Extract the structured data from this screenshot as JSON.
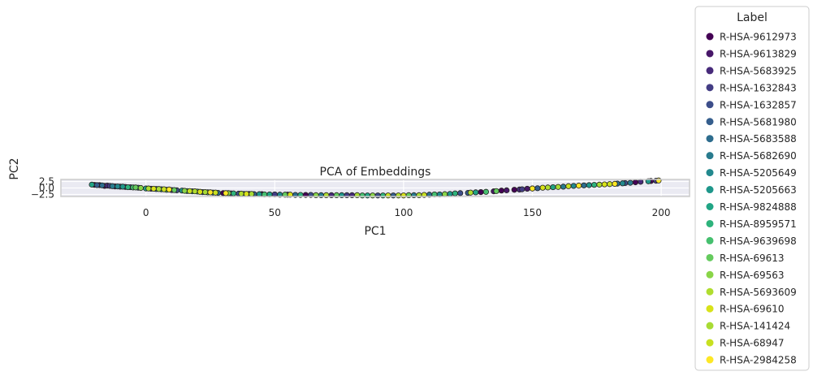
{
  "chart_data": {
    "type": "scatter",
    "title": "PCA of Embeddings",
    "xlabel": "PC1",
    "ylabel": "PC2",
    "xlim": [
      -33,
      211
    ],
    "ylim": [
      -3.3,
      3.3
    ],
    "xticks": [
      0,
      50,
      100,
      150,
      200
    ],
    "xtick_labels": [
      "0",
      "50",
      "100",
      "150",
      "200"
    ],
    "yticks": [
      2.5,
      0.0,
      -2.5
    ],
    "ytick_labels": [
      "2.5",
      "0.0",
      "−2.5"
    ],
    "grid": true,
    "legend": {
      "title": "Label",
      "placement": "outside-right",
      "entries": [
        {
          "label": "R-HSA-9612973",
          "color": "#440154"
        },
        {
          "label": "R-HSA-9613829",
          "color": "#481769"
        },
        {
          "label": "R-HSA-5683925",
          "color": "#472a7a"
        },
        {
          "label": "R-HSA-1632843",
          "color": "#433d84"
        },
        {
          "label": "R-HSA-1632857",
          "color": "#3d4e8a"
        },
        {
          "label": "R-HSA-5681980",
          "color": "#355e8d"
        },
        {
          "label": "R-HSA-5683588",
          "color": "#2e6d8e"
        },
        {
          "label": "R-HSA-5682690",
          "color": "#297b8e"
        },
        {
          "label": "R-HSA-5205649",
          "color": "#23898e"
        },
        {
          "label": "R-HSA-5205663",
          "color": "#1f978b"
        },
        {
          "label": "R-HSA-9824888",
          "color": "#21a585"
        },
        {
          "label": "R-HSA-8959571",
          "color": "#2eb37c"
        },
        {
          "label": "R-HSA-9639698",
          "color": "#46c06f"
        },
        {
          "label": "R-HSA-69613",
          "color": "#65cb5e"
        },
        {
          "label": "R-HSA-69563",
          "color": "#89d548"
        },
        {
          "label": "R-HSA-5693609",
          "color": "#b0dd2f"
        },
        {
          "label": "R-HSA-69610",
          "color": "#d8e219"
        },
        {
          "label": "R-HSA-141424",
          "color": "#a8db34"
        },
        {
          "label": "R-HSA-68947",
          "color": "#c8e020"
        },
        {
          "label": "R-HSA-2984258",
          "color": "#fde725"
        }
      ]
    },
    "series": [
      {
        "label_index": 0,
        "x": [
          -20,
          -16,
          30,
          45,
          62,
          130,
          138,
          143,
          190,
          196
        ],
        "y": [
          1.2,
          0.8,
          -2.0,
          -2.4,
          -2.7,
          -1.6,
          -1.0,
          -0.7,
          2.2,
          2.7
        ]
      },
      {
        "label_index": 1,
        "x": [
          -18,
          -12,
          40,
          55,
          135,
          140,
          148
        ],
        "y": [
          1.1,
          0.6,
          -2.3,
          -2.6,
          -1.3,
          -0.9,
          -0.3
        ]
      },
      {
        "label_index": 2,
        "x": [
          -15,
          -8,
          2,
          72,
          80,
          145,
          192
        ],
        "y": [
          0.9,
          0.4,
          -0.3,
          -2.8,
          -2.8,
          -0.6,
          2.4
        ]
      },
      {
        "label_index": 3,
        "x": [
          -14,
          10,
          33,
          50,
          78,
          146,
          198
        ],
        "y": [
          0.8,
          -0.8,
          -2.1,
          -2.5,
          -2.8,
          -0.5,
          2.8
        ]
      },
      {
        "label_index": 4,
        "x": [
          -10,
          12,
          36,
          64,
          90,
          122,
          186
        ],
        "y": [
          0.5,
          -0.9,
          -2.2,
          -2.7,
          -2.9,
          -2.0,
          1.9
        ]
      },
      {
        "label_index": 5,
        "x": [
          -19,
          -6,
          22,
          42,
          96,
          125,
          152
        ],
        "y": [
          1.1,
          0.3,
          -1.6,
          -2.4,
          -2.9,
          -1.9,
          -0.1
        ]
      },
      {
        "label_index": 6,
        "x": [
          -17,
          -3,
          28,
          58,
          110,
          170,
          183
        ],
        "y": [
          1.0,
          0.1,
          -1.9,
          -2.7,
          -2.6,
          1.0,
          1.7
        ]
      },
      {
        "label_index": 7,
        "x": [
          -13,
          4,
          38,
          68,
          104,
          162,
          188
        ],
        "y": [
          0.7,
          -0.4,
          -2.3,
          -2.8,
          -2.8,
          0.5,
          2.0
        ]
      },
      {
        "label_index": 8,
        "x": [
          -11,
          6,
          26,
          52,
          114,
          166,
          185
        ],
        "y": [
          0.6,
          -0.5,
          -1.8,
          -2.6,
          -2.5,
          0.8,
          1.8
        ]
      },
      {
        "label_index": 9,
        "x": [
          -9,
          14,
          44,
          76,
          118,
          172,
          195
        ],
        "y": [
          0.5,
          -1.0,
          -2.4,
          -2.8,
          -2.3,
          1.1,
          2.6
        ]
      },
      {
        "label_index": 10,
        "x": [
          -21,
          0,
          18,
          48,
          86,
          128,
          158
        ],
        "y": [
          1.3,
          -0.2,
          -1.3,
          -2.5,
          -2.9,
          -1.7,
          0.3
        ]
      },
      {
        "label_index": 11,
        "x": [
          -7,
          16,
          34,
          60,
          92,
          120,
          174
        ],
        "y": [
          0.3,
          -1.2,
          -2.1,
          -2.7,
          -2.9,
          -2.1,
          1.2
        ]
      },
      {
        "label_index": 12,
        "x": [
          -5,
          8,
          20,
          46,
          84,
          112,
          132
        ],
        "y": [
          0.2,
          -0.7,
          -1.4,
          -2.5,
          -2.9,
          -2.5,
          -1.5
        ]
      },
      {
        "label_index": 13,
        "x": [
          -4,
          11,
          24,
          54,
          74,
          102,
          136
        ],
        "y": [
          0.2,
          -0.8,
          -1.7,
          -2.6,
          -2.8,
          -2.8,
          -1.2
        ]
      },
      {
        "label_index": 14,
        "x": [
          -2,
          15,
          32,
          66,
          88,
          116,
          150
        ],
        "y": [
          0.0,
          -1.1,
          -2.0,
          -2.8,
          -2.9,
          -2.4,
          -0.2
        ]
      },
      {
        "label_index": 15,
        "x": [
          1,
          19,
          37,
          70,
          98,
          126,
          156
        ],
        "y": [
          -0.2,
          -1.3,
          -2.2,
          -2.8,
          -2.9,
          -1.8,
          0.2
        ]
      },
      {
        "label_index": 16,
        "x": [
          3,
          21,
          39,
          56,
          100,
          154,
          178
        ],
        "y": [
          -0.3,
          -1.5,
          -2.3,
          -2.6,
          -2.9,
          0.1,
          1.4
        ]
      },
      {
        "label_index": 17,
        "x": [
          5,
          23,
          41,
          82,
          106,
          160,
          176
        ],
        "y": [
          -0.4,
          -1.6,
          -2.3,
          -2.8,
          -2.8,
          0.4,
          1.3
        ]
      },
      {
        "label_index": 18,
        "x": [
          7,
          17,
          27,
          94,
          108,
          164,
          180
        ],
        "y": [
          -0.5,
          -1.2,
          -1.8,
          -2.9,
          -2.7,
          0.7,
          1.5
        ]
      },
      {
        "label_index": 19,
        "x": [
          9,
          25,
          31,
          150,
          168,
          182,
          199
        ],
        "y": [
          -0.6,
          -1.7,
          -2.0,
          -0.2,
          0.9,
          1.6,
          2.9
        ]
      }
    ]
  }
}
